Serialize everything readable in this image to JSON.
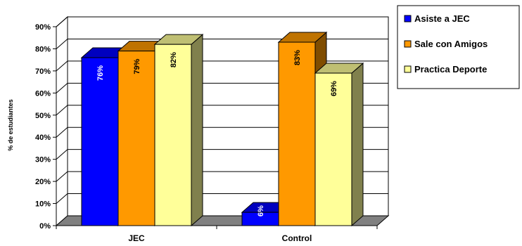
{
  "chart_data": {
    "type": "bar",
    "categories": [
      "JEC",
      "Control"
    ],
    "ylabel": "% de estudiantes",
    "ylim": [
      0,
      90
    ],
    "ytick_step": 10,
    "ytick_suffix": "%",
    "grid": true,
    "legend_position": "top-right",
    "series": [
      {
        "name": "Asiste a JEC",
        "values": [
          76,
          6
        ],
        "labels": [
          "76%",
          "6%"
        ],
        "color": "#0000FF",
        "label_color": "#FFFFFF"
      },
      {
        "name": "Sale con Amigos",
        "values": [
          79,
          83
        ],
        "labels": [
          "79%",
          "83%"
        ],
        "color": "#FF9900",
        "label_color": "#000000"
      },
      {
        "name": "Practica Deporte",
        "values": [
          82,
          69
        ],
        "labels": [
          "82%",
          "69%"
        ],
        "color": "#FFFF99",
        "label_color": "#000000"
      }
    ]
  }
}
